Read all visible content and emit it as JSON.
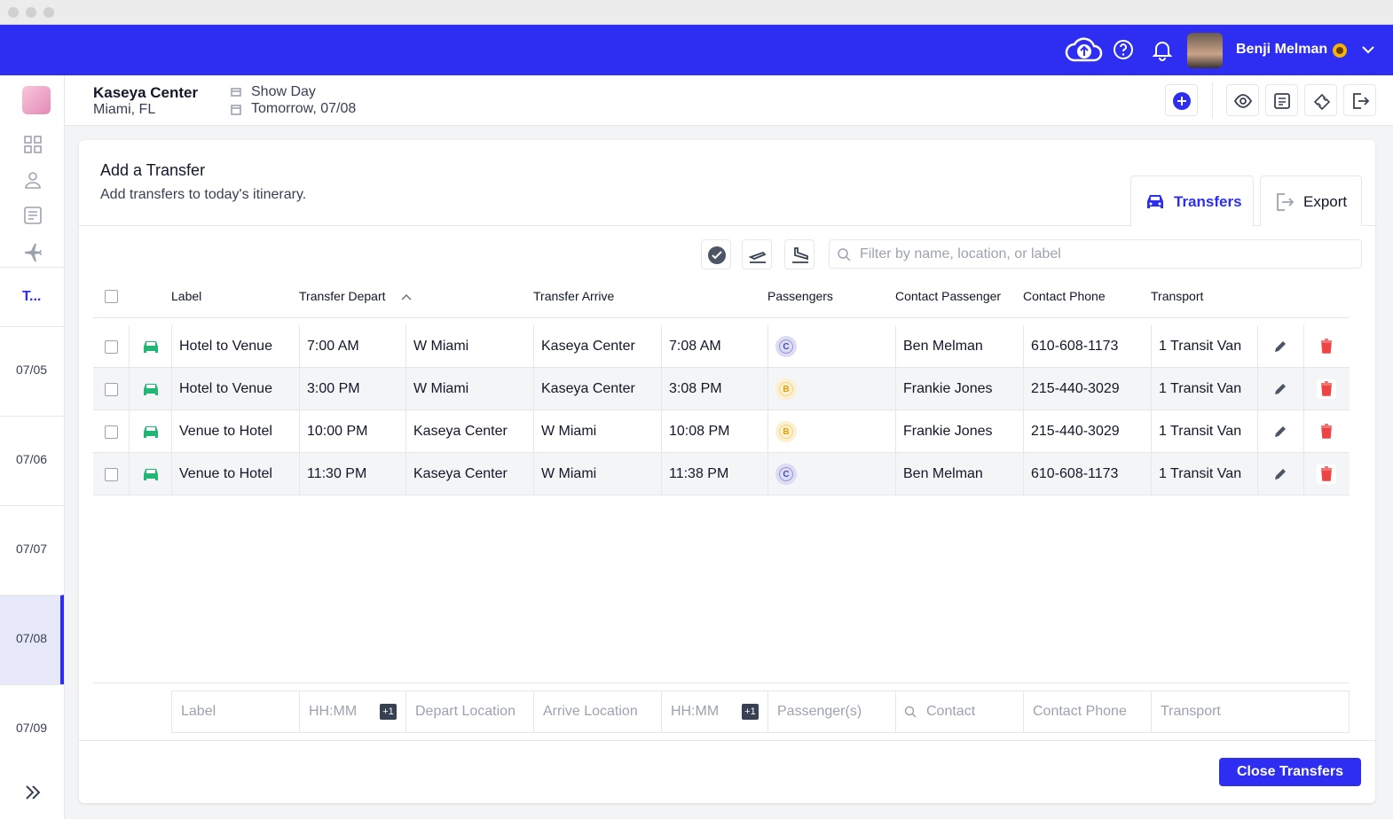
{
  "header": {
    "user_name": "Benji Melman"
  },
  "venue": {
    "name": "Kaseya Center",
    "location": "Miami, FL",
    "day_type": "Show Day",
    "date": "Tomorrow, 07/08"
  },
  "sidebar": {
    "active_label": "T...",
    "dates": [
      "07/05",
      "07/06",
      "07/07",
      "07/08",
      "07/09"
    ]
  },
  "panel": {
    "title": "Add a Transfer",
    "subtitle": "Add transfers to today's itinerary.",
    "tabs": [
      "Transfers",
      "Export"
    ],
    "search_placeholder": "Filter by name, location, or label"
  },
  "table": {
    "columns": [
      "Label",
      "Transfer Depart",
      "Transfer Arrive",
      "Passengers",
      "Contact Passenger",
      "Contact Phone",
      "Transport"
    ],
    "rows": [
      [
        "Hotel to Venue",
        "7:00 AM",
        "W Miami",
        "Kaseya Center",
        "7:08 AM",
        "C",
        "Ben Melman",
        "610-608-1173",
        "1 Transit Van"
      ],
      [
        "Hotel to Venue",
        "3:00 PM",
        "W Miami",
        "Kaseya Center",
        "3:08 PM",
        "B",
        "Frankie Jones",
        "215-440-3029",
        "1 Transit Van"
      ],
      [
        "Venue to Hotel",
        "10:00 PM",
        "Kaseya Center",
        "W Miami",
        "10:08 PM",
        "B",
        "Frankie Jones",
        "215-440-3029",
        "1 Transit Van"
      ],
      [
        "Venue to Hotel",
        "11:30 PM",
        "Kaseya Center",
        "W Miami",
        "11:38 PM",
        "C",
        "Ben Melman",
        "610-608-1173",
        "1 Transit Van"
      ]
    ]
  },
  "new_row": {
    "placeholders": [
      "Label",
      "HH:MM",
      "Depart Location",
      "Arrive Location",
      "HH:MM",
      "Passenger(s)",
      "Contact",
      "Contact Phone",
      "Transport"
    ],
    "day_offset": "+1"
  },
  "footer": {
    "button": "Close Transfers"
  }
}
